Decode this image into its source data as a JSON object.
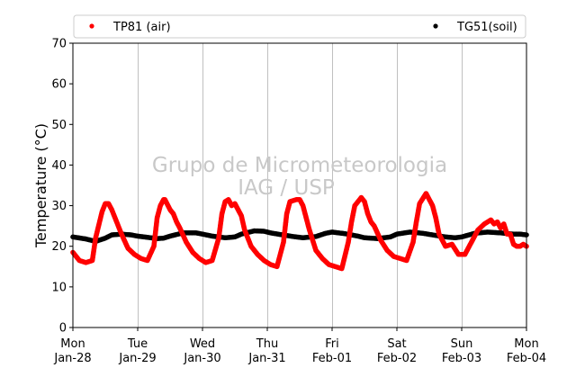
{
  "chart_data": {
    "type": "scatter",
    "ylabel": "Temperature (°C)",
    "xlabel": "",
    "ylim": [
      0,
      70
    ],
    "yticks": [
      0,
      10,
      20,
      30,
      40,
      50,
      60,
      70
    ],
    "xlim": [
      0,
      7
    ],
    "grid": "vertical",
    "legend_position": "top",
    "x_ticks": [
      {
        "day": "Mon",
        "date": "Jan-28"
      },
      {
        "day": "Tue",
        "date": "Jan-29"
      },
      {
        "day": "Wed",
        "date": "Jan-30"
      },
      {
        "day": "Thu",
        "date": "Jan-31"
      },
      {
        "day": "Fri",
        "date": "Feb-01"
      },
      {
        "day": "Sat",
        "date": "Feb-02"
      },
      {
        "day": "Sun",
        "date": "Feb-03"
      },
      {
        "day": "Mon",
        "date": "Feb-04"
      }
    ],
    "watermark": [
      "Grupo de Micrometeorologia",
      "IAG / USP"
    ],
    "series": [
      {
        "name": "TP81 (air)",
        "color": "#ff0000",
        "x": [
          0.0,
          0.1,
          0.2,
          0.3,
          0.35,
          0.45,
          0.5,
          0.55,
          0.6,
          0.65,
          0.75,
          0.85,
          0.95,
          1.05,
          1.15,
          1.25,
          1.3,
          1.35,
          1.4,
          1.42,
          1.5,
          1.55,
          1.6,
          1.65,
          1.75,
          1.85,
          1.95,
          2.05,
          2.15,
          2.25,
          2.3,
          2.35,
          2.4,
          2.45,
          2.5,
          2.55,
          2.6,
          2.65,
          2.75,
          2.85,
          2.95,
          3.05,
          3.15,
          3.25,
          3.3,
          3.35,
          3.45,
          3.5,
          3.55,
          3.6,
          3.65,
          3.75,
          3.85,
          3.95,
          4.05,
          4.15,
          4.25,
          4.3,
          4.35,
          4.45,
          4.5,
          4.55,
          4.6,
          4.65,
          4.75,
          4.85,
          4.95,
          5.05,
          5.15,
          5.25,
          5.3,
          5.35,
          5.45,
          5.55,
          5.6,
          5.65,
          5.7,
          5.75,
          5.85,
          5.95,
          6.05,
          6.15,
          6.25,
          6.35,
          6.45,
          6.5,
          6.55,
          6.6,
          6.65,
          6.7,
          6.75,
          6.8,
          6.85,
          6.9,
          6.95,
          7.0
        ],
        "y": [
          18.5,
          16.5,
          16.0,
          16.5,
          22.0,
          28.5,
          30.5,
          30.5,
          29.0,
          27.0,
          23.0,
          19.5,
          18.0,
          17.0,
          16.5,
          20.0,
          27.0,
          30.0,
          31.5,
          31.5,
          29.0,
          28.0,
          26.0,
          24.5,
          21.0,
          18.5,
          17.0,
          16.0,
          16.5,
          22.0,
          28.0,
          31.0,
          31.5,
          30.0,
          30.5,
          29.0,
          27.5,
          24.0,
          20.0,
          18.0,
          16.5,
          15.5,
          15.0,
          21.0,
          28.0,
          31.0,
          31.5,
          31.5,
          30.0,
          27.0,
          24.0,
          19.0,
          17.0,
          15.5,
          15.0,
          14.5,
          21.0,
          26.0,
          30.0,
          32.0,
          31.0,
          28.0,
          26.0,
          25.0,
          21.5,
          19.0,
          17.5,
          17.0,
          16.5,
          21.0,
          26.0,
          30.5,
          33.0,
          30.0,
          27.0,
          23.0,
          21.5,
          20.0,
          20.5,
          18.0,
          18.0,
          21.0,
          24.0,
          25.5,
          26.5,
          25.5,
          26.0,
          24.5,
          25.5,
          23.0,
          23.0,
          20.5,
          20.0,
          20.0,
          20.5,
          20.0
        ]
      },
      {
        "name": "TG51(soil)",
        "color": "#000000",
        "x": [
          0.0,
          0.2,
          0.35,
          0.5,
          0.6,
          0.75,
          0.9,
          1.0,
          1.15,
          1.3,
          1.4,
          1.5,
          1.7,
          1.9,
          2.0,
          2.15,
          2.35,
          2.5,
          2.6,
          2.8,
          2.95,
          3.05,
          3.2,
          3.4,
          3.55,
          3.75,
          3.9,
          4.0,
          4.2,
          4.4,
          4.5,
          4.7,
          4.9,
          5.0,
          5.2,
          5.4,
          5.55,
          5.75,
          5.9,
          6.0,
          6.2,
          6.4,
          6.6,
          6.8,
          6.9,
          7.0
        ],
        "y": [
          22.3,
          21.8,
          21.2,
          22.0,
          22.8,
          23.0,
          22.8,
          22.5,
          22.2,
          21.9,
          22.0,
          22.5,
          23.3,
          23.3,
          23.0,
          22.5,
          22.1,
          22.3,
          23.0,
          23.8,
          23.7,
          23.3,
          22.9,
          22.4,
          22.1,
          22.4,
          23.2,
          23.5,
          23.1,
          22.5,
          22.1,
          21.9,
          22.3,
          23.0,
          23.5,
          23.2,
          22.8,
          22.3,
          22.1,
          22.3,
          23.2,
          23.5,
          23.3,
          23.0,
          23.0,
          22.8
        ]
      }
    ]
  }
}
